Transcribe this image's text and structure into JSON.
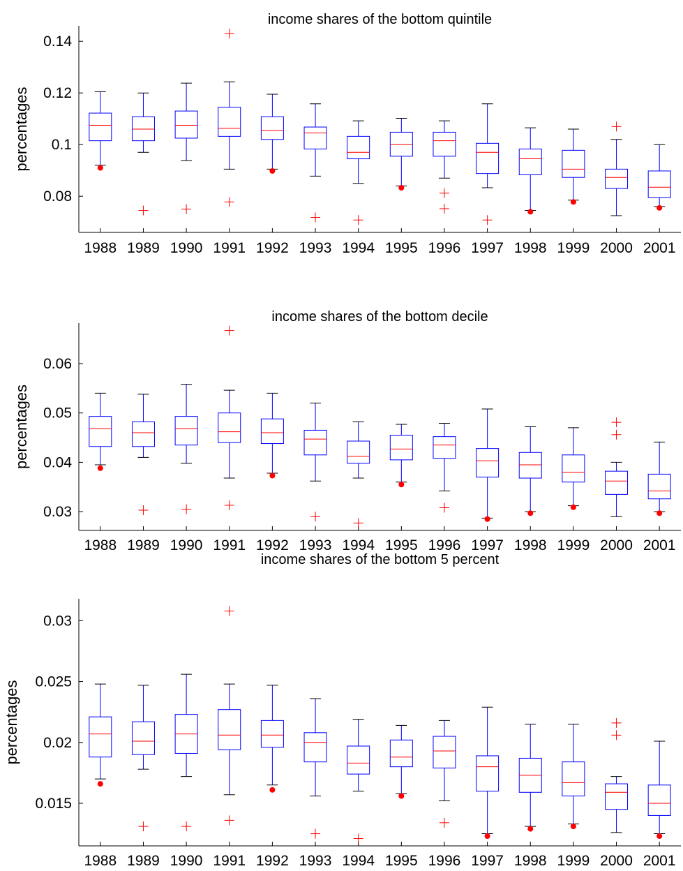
{
  "chart_data": [
    {
      "type": "box",
      "title": "income shares of the bottom quintile",
      "ylabel": "percentages",
      "categories": [
        "1988",
        "1989",
        "1990",
        "1991",
        "1992",
        "1993",
        "1994",
        "1995",
        "1996",
        "1997",
        "1998",
        "1999",
        "2000",
        "2001"
      ],
      "ylim": [
        0.066,
        0.146
      ],
      "yticks": [
        0.08,
        0.1,
        0.12,
        0.14
      ],
      "ytick_labels": [
        "0.08",
        "0.1",
        "0.12",
        "0.14"
      ],
      "boxes": [
        {
          "whisker_low": 0.092,
          "q1": 0.1015,
          "median": 0.1075,
          "q3": 0.1122,
          "whisker_high": 0.1205,
          "outliers": [],
          "dots": [
            0.091
          ]
        },
        {
          "whisker_low": 0.097,
          "q1": 0.1015,
          "median": 0.106,
          "q3": 0.1108,
          "whisker_high": 0.12,
          "outliers": [
            0.0745
          ],
          "dots": []
        },
        {
          "whisker_low": 0.0938,
          "q1": 0.1025,
          "median": 0.1075,
          "q3": 0.113,
          "whisker_high": 0.1238,
          "outliers": [
            0.075
          ],
          "dots": []
        },
        {
          "whisker_low": 0.0905,
          "q1": 0.1032,
          "median": 0.1063,
          "q3": 0.1145,
          "whisker_high": 0.1243,
          "outliers": [
            0.143,
            0.0778
          ],
          "dots": []
        },
        {
          "whisker_low": 0.0905,
          "q1": 0.102,
          "median": 0.1055,
          "q3": 0.1108,
          "whisker_high": 0.1195,
          "outliers": [],
          "dots": [
            0.0898
          ]
        },
        {
          "whisker_low": 0.0878,
          "q1": 0.0983,
          "median": 0.1045,
          "q3": 0.1068,
          "whisker_high": 0.1158,
          "outliers": [
            0.0718
          ],
          "dots": []
        },
        {
          "whisker_low": 0.085,
          "q1": 0.0945,
          "median": 0.097,
          "q3": 0.1032,
          "whisker_high": 0.1092,
          "outliers": [
            0.0708
          ],
          "dots": []
        },
        {
          "whisker_low": 0.084,
          "q1": 0.0955,
          "median": 0.1,
          "q3": 0.1048,
          "whisker_high": 0.1102,
          "outliers": [],
          "dots": [
            0.0833
          ]
        },
        {
          "whisker_low": 0.087,
          "q1": 0.0955,
          "median": 0.1015,
          "q3": 0.1048,
          "whisker_high": 0.1092,
          "outliers": [
            0.0812,
            0.0752
          ],
          "dots": []
        },
        {
          "whisker_low": 0.0833,
          "q1": 0.0888,
          "median": 0.097,
          "q3": 0.1005,
          "whisker_high": 0.1158,
          "outliers": [
            0.0708
          ],
          "dots": []
        },
        {
          "whisker_low": 0.0745,
          "q1": 0.0883,
          "median": 0.0945,
          "q3": 0.0983,
          "whisker_high": 0.1065,
          "outliers": [],
          "dots": [
            0.074
          ]
        },
        {
          "whisker_low": 0.0785,
          "q1": 0.0873,
          "median": 0.0905,
          "q3": 0.0978,
          "whisker_high": 0.106,
          "outliers": [],
          "dots": [
            0.0778
          ]
        },
        {
          "whisker_low": 0.0725,
          "q1": 0.083,
          "median": 0.0873,
          "q3": 0.0905,
          "whisker_high": 0.102,
          "outliers": [
            0.107
          ],
          "dots": []
        },
        {
          "whisker_low": 0.076,
          "q1": 0.0795,
          "median": 0.0835,
          "q3": 0.0898,
          "whisker_high": 0.1,
          "outliers": [],
          "dots": [
            0.0755
          ]
        }
      ]
    },
    {
      "type": "box",
      "title": "income shares of the bottom decile",
      "ylabel": "percentages",
      "categories": [
        "1988",
        "1989",
        "1990",
        "1991",
        "1992",
        "1993",
        "1994",
        "1995",
        "1996",
        "1997",
        "1998",
        "1999",
        "2000",
        "2001"
      ],
      "ylim": [
        0.0262,
        0.0682
      ],
      "yticks": [
        0.03,
        0.04,
        0.05,
        0.06
      ],
      "ytick_labels": [
        "0.03",
        "0.04",
        "0.05",
        "0.06"
      ],
      "boxes": [
        {
          "whisker_low": 0.0395,
          "q1": 0.0432,
          "median": 0.0468,
          "q3": 0.0493,
          "whisker_high": 0.054,
          "outliers": [],
          "dots": [
            0.0388
          ]
        },
        {
          "whisker_low": 0.041,
          "q1": 0.0432,
          "median": 0.046,
          "q3": 0.0482,
          "whisker_high": 0.0538,
          "outliers": [
            0.0303
          ],
          "dots": []
        },
        {
          "whisker_low": 0.0398,
          "q1": 0.0435,
          "median": 0.0468,
          "q3": 0.0493,
          "whisker_high": 0.0558,
          "outliers": [
            0.0305
          ],
          "dots": []
        },
        {
          "whisker_low": 0.0368,
          "q1": 0.044,
          "median": 0.0462,
          "q3": 0.05,
          "whisker_high": 0.0546,
          "outliers": [
            0.0667,
            0.0313
          ],
          "dots": []
        },
        {
          "whisker_low": 0.0378,
          "q1": 0.0438,
          "median": 0.046,
          "q3": 0.0488,
          "whisker_high": 0.054,
          "outliers": [],
          "dots": [
            0.0373
          ]
        },
        {
          "whisker_low": 0.0362,
          "q1": 0.0415,
          "median": 0.0447,
          "q3": 0.0465,
          "whisker_high": 0.052,
          "outliers": [
            0.029
          ],
          "dots": []
        },
        {
          "whisker_low": 0.0368,
          "q1": 0.0398,
          "median": 0.0412,
          "q3": 0.0443,
          "whisker_high": 0.0482,
          "outliers": [
            0.0277
          ],
          "dots": []
        },
        {
          "whisker_low": 0.036,
          "q1": 0.0405,
          "median": 0.0427,
          "q3": 0.0455,
          "whisker_high": 0.0477,
          "outliers": [],
          "dots": [
            0.0355
          ]
        },
        {
          "whisker_low": 0.0342,
          "q1": 0.0408,
          "median": 0.0435,
          "q3": 0.0452,
          "whisker_high": 0.0479,
          "outliers": [
            0.0308
          ],
          "dots": []
        },
        {
          "whisker_low": 0.0287,
          "q1": 0.037,
          "median": 0.0403,
          "q3": 0.0428,
          "whisker_high": 0.0508,
          "outliers": [],
          "dots": [
            0.0285
          ]
        },
        {
          "whisker_low": 0.03,
          "q1": 0.0368,
          "median": 0.0395,
          "q3": 0.042,
          "whisker_high": 0.0472,
          "outliers": [],
          "dots": [
            0.0297
          ]
        },
        {
          "whisker_low": 0.0312,
          "q1": 0.036,
          "median": 0.038,
          "q3": 0.0415,
          "whisker_high": 0.047,
          "outliers": [],
          "dots": [
            0.0309
          ]
        },
        {
          "whisker_low": 0.029,
          "q1": 0.0335,
          "median": 0.0362,
          "q3": 0.0382,
          "whisker_high": 0.04,
          "outliers": [
            0.0481,
            0.0456
          ],
          "dots": []
        },
        {
          "whisker_low": 0.03,
          "q1": 0.0326,
          "median": 0.0342,
          "q3": 0.0376,
          "whisker_high": 0.0441,
          "outliers": [],
          "dots": [
            0.0297
          ]
        }
      ]
    },
    {
      "type": "box",
      "title": "income shares of the bottom 5 percent",
      "ylabel": "percentages",
      "categories": [
        "1988",
        "1989",
        "1990",
        "1991",
        "1992",
        "1993",
        "1994",
        "1995",
        "1996",
        "1997",
        "1998",
        "1999",
        "2000",
        "2001"
      ],
      "ylim": [
        0.0115,
        0.0318
      ],
      "yticks": [
        0.015,
        0.02,
        0.025,
        0.03
      ],
      "ytick_labels": [
        "0.015",
        "0.02",
        "0.025",
        "0.03"
      ],
      "boxes": [
        {
          "whisker_low": 0.017,
          "q1": 0.0188,
          "median": 0.0207,
          "q3": 0.0221,
          "whisker_high": 0.0248,
          "outliers": [],
          "dots": [
            0.0166
          ]
        },
        {
          "whisker_low": 0.0178,
          "q1": 0.019,
          "median": 0.0201,
          "q3": 0.0217,
          "whisker_high": 0.0247,
          "outliers": [
            0.0131
          ],
          "dots": []
        },
        {
          "whisker_low": 0.0172,
          "q1": 0.0191,
          "median": 0.0207,
          "q3": 0.0223,
          "whisker_high": 0.0256,
          "outliers": [
            0.0131
          ],
          "dots": []
        },
        {
          "whisker_low": 0.0157,
          "q1": 0.0194,
          "median": 0.0206,
          "q3": 0.0227,
          "whisker_high": 0.0248,
          "outliers": [
            0.0308,
            0.0136
          ],
          "dots": []
        },
        {
          "whisker_low": 0.0165,
          "q1": 0.0196,
          "median": 0.0206,
          "q3": 0.0218,
          "whisker_high": 0.0247,
          "outliers": [],
          "dots": [
            0.0161
          ]
        },
        {
          "whisker_low": 0.0156,
          "q1": 0.0184,
          "median": 0.02,
          "q3": 0.0208,
          "whisker_high": 0.0236,
          "outliers": [
            0.0125
          ],
          "dots": []
        },
        {
          "whisker_low": 0.016,
          "q1": 0.0174,
          "median": 0.0183,
          "q3": 0.0197,
          "whisker_high": 0.0219,
          "outliers": [
            0.0121
          ],
          "dots": []
        },
        {
          "whisker_low": 0.0158,
          "q1": 0.018,
          "median": 0.0188,
          "q3": 0.0202,
          "whisker_high": 0.0214,
          "outliers": [],
          "dots": [
            0.0156
          ]
        },
        {
          "whisker_low": 0.0152,
          "q1": 0.0179,
          "median": 0.0193,
          "q3": 0.0205,
          "whisker_high": 0.0218,
          "outliers": [
            0.0134
          ],
          "dots": []
        },
        {
          "whisker_low": 0.0125,
          "q1": 0.016,
          "median": 0.018,
          "q3": 0.0189,
          "whisker_high": 0.0229,
          "outliers": [],
          "dots": [
            0.0123
          ]
        },
        {
          "whisker_low": 0.0131,
          "q1": 0.0159,
          "median": 0.0173,
          "q3": 0.0187,
          "whisker_high": 0.0215,
          "outliers": [],
          "dots": [
            0.0129
          ]
        },
        {
          "whisker_low": 0.0133,
          "q1": 0.0156,
          "median": 0.0167,
          "q3": 0.0184,
          "whisker_high": 0.0215,
          "outliers": [],
          "dots": [
            0.0131
          ]
        },
        {
          "whisker_low": 0.0126,
          "q1": 0.0145,
          "median": 0.0159,
          "q3": 0.0166,
          "whisker_high": 0.0172,
          "outliers": [
            0.0216,
            0.0206
          ],
          "dots": []
        },
        {
          "whisker_low": 0.0125,
          "q1": 0.014,
          "median": 0.015,
          "q3": 0.0165,
          "whisker_high": 0.0201,
          "outliers": [],
          "dots": [
            0.0123
          ]
        }
      ]
    }
  ],
  "style": {
    "box_color": "#0000ff",
    "median_color": "#ff0000",
    "outlier_color": "#ff0000",
    "axis_color": "#000000"
  }
}
